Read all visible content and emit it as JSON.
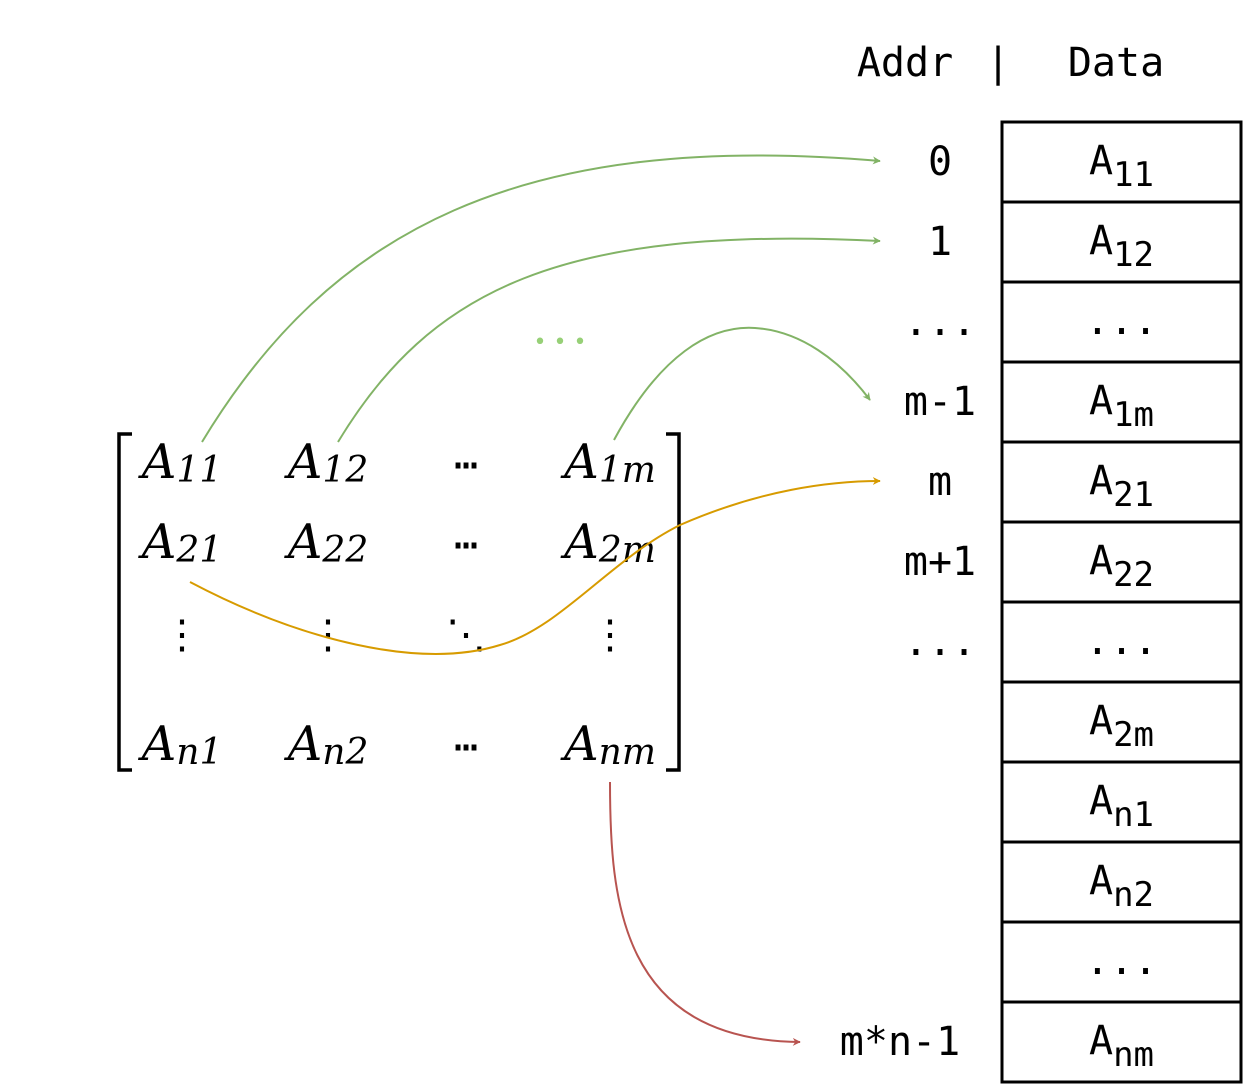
{
  "header": {
    "addr_label": "Addr",
    "separator": "|",
    "data_label": "Data"
  },
  "memory": {
    "addresses": [
      "0",
      "1",
      "...",
      "m-1",
      "m",
      "m+1",
      "...",
      "m*n-1"
    ],
    "cells": [
      {
        "base": "A",
        "sub": "11"
      },
      {
        "base": "A",
        "sub": "12"
      },
      {
        "base": "...",
        "sub": ""
      },
      {
        "base": "A",
        "sub": "1m"
      },
      {
        "base": "A",
        "sub": "21"
      },
      {
        "base": "A",
        "sub": "22"
      },
      {
        "base": "...",
        "sub": ""
      },
      {
        "base": "A",
        "sub": "2m"
      },
      {
        "base": "A",
        "sub": "n1"
      },
      {
        "base": "A",
        "sub": "n2"
      },
      {
        "base": "...",
        "sub": ""
      },
      {
        "base": "A",
        "sub": "nm"
      }
    ]
  },
  "matrix": {
    "rows": [
      [
        {
          "base": "A",
          "sub": "11"
        },
        {
          "base": "A",
          "sub": "12"
        },
        {
          "base": "⋯",
          "sub": ""
        },
        {
          "base": "A",
          "sub": "1m"
        }
      ],
      [
        {
          "base": "A",
          "sub": "21"
        },
        {
          "base": "A",
          "sub": "22"
        },
        {
          "base": "⋯",
          "sub": ""
        },
        {
          "base": "A",
          "sub": "2m"
        }
      ],
      [
        {
          "base": "⋮",
          "sub": ""
        },
        {
          "base": "⋮",
          "sub": ""
        },
        {
          "base": "⋱",
          "sub": ""
        },
        {
          "base": "⋮",
          "sub": ""
        }
      ],
      [
        {
          "base": "A",
          "sub": "n1"
        },
        {
          "base": "A",
          "sub": "n2"
        },
        {
          "base": "⋯",
          "sub": ""
        },
        {
          "base": "A",
          "sub": "nm"
        }
      ]
    ],
    "ellipsis_between_arrows": "• • •"
  },
  "colors": {
    "green": "#82b366",
    "orange": "#d79b00",
    "red": "#b85450",
    "ellipsis_green": "#97d077"
  }
}
